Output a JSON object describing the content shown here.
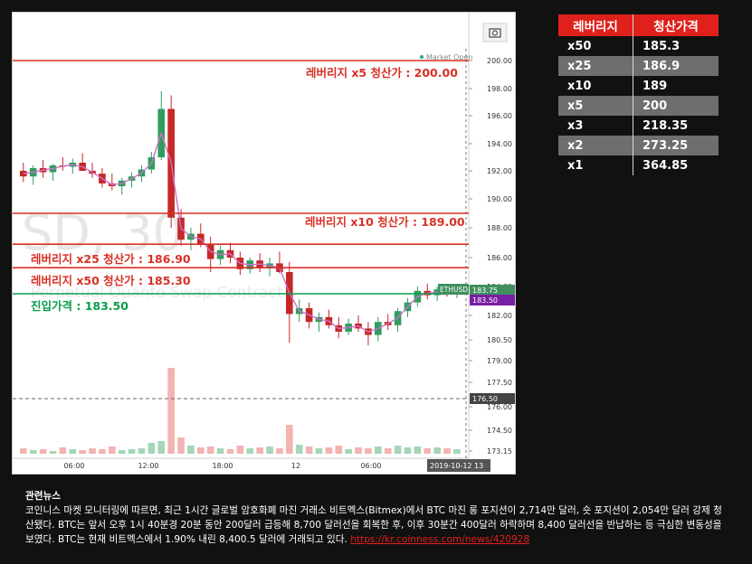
{
  "chart_data": {
    "type": "candlestick",
    "symbol_label": "ETHUSD",
    "watermark": "SD, 30",
    "watermark_sub": "Perpetual Quanto Swap Contract",
    "market_status": "Market Open",
    "y_ticks": [
      "200.00",
      "198.00",
      "196.00",
      "194.00",
      "192.00",
      "190.00",
      "188.00",
      "186.00",
      "184.00",
      "182.00",
      "180.50",
      "179.00",
      "177.50",
      "176.00",
      "174.50",
      "173.15"
    ],
    "x_ticks": [
      "06:00",
      "12:00",
      "18:00",
      "12",
      "06:00"
    ],
    "date_label": "2019-10-12 13",
    "price_tag": "183.75",
    "price_tag2": "183.50",
    "dashed_level_tag": "176.50",
    "horizontal_lines": [
      {
        "label": "레버리지 x5 청산가 : 200.00",
        "value": 200.0
      },
      {
        "label": "레버리지 x10 청산가 : 189.00",
        "value": 189.0
      },
      {
        "label": "레버리지 x25 청산가 : 186.90",
        "value": 186.9
      },
      {
        "label": "레버리지 x50 청산가 : 185.30",
        "value": 185.3
      },
      {
        "label": "진입가격 : 183.50",
        "value": 183.5
      }
    ],
    "candles_approx": [
      {
        "o": 192.0,
        "h": 192.6,
        "l": 191.2,
        "c": 191.6
      },
      {
        "o": 191.6,
        "h": 192.4,
        "l": 191.0,
        "c": 192.2
      },
      {
        "o": 192.2,
        "h": 192.8,
        "l": 191.5,
        "c": 191.9
      },
      {
        "o": 191.9,
        "h": 192.5,
        "l": 191.3,
        "c": 192.4
      },
      {
        "o": 192.4,
        "h": 193.0,
        "l": 192.0,
        "c": 192.3
      },
      {
        "o": 192.3,
        "h": 192.9,
        "l": 191.8,
        "c": 192.6
      },
      {
        "o": 192.6,
        "h": 193.3,
        "l": 192.2,
        "c": 192.0
      },
      {
        "o": 192.0,
        "h": 192.6,
        "l": 191.5,
        "c": 191.8
      },
      {
        "o": 191.8,
        "h": 192.2,
        "l": 190.8,
        "c": 191.1
      },
      {
        "o": 191.1,
        "h": 191.8,
        "l": 190.6,
        "c": 190.9
      },
      {
        "o": 190.9,
        "h": 191.5,
        "l": 190.3,
        "c": 191.3
      },
      {
        "o": 191.3,
        "h": 191.9,
        "l": 190.8,
        "c": 191.6
      },
      {
        "o": 191.6,
        "h": 192.4,
        "l": 191.2,
        "c": 192.1
      },
      {
        "o": 192.1,
        "h": 193.4,
        "l": 191.8,
        "c": 193.0
      },
      {
        "o": 193.0,
        "h": 197.8,
        "l": 192.8,
        "c": 196.5
      },
      {
        "o": 196.5,
        "h": 197.5,
        "l": 188.0,
        "c": 188.7
      },
      {
        "o": 188.7,
        "h": 189.3,
        "l": 186.8,
        "c": 187.2
      },
      {
        "o": 187.2,
        "h": 188.0,
        "l": 186.5,
        "c": 187.6
      },
      {
        "o": 187.6,
        "h": 188.3,
        "l": 186.7,
        "c": 186.9
      },
      {
        "o": 186.9,
        "h": 187.4,
        "l": 185.0,
        "c": 185.9
      },
      {
        "o": 185.9,
        "h": 186.8,
        "l": 185.5,
        "c": 186.5
      },
      {
        "o": 186.5,
        "h": 187.0,
        "l": 185.6,
        "c": 186.0
      },
      {
        "o": 186.0,
        "h": 186.4,
        "l": 184.8,
        "c": 185.2
      },
      {
        "o": 185.2,
        "h": 186.0,
        "l": 184.9,
        "c": 185.8
      },
      {
        "o": 185.8,
        "h": 186.3,
        "l": 185.0,
        "c": 185.3
      },
      {
        "o": 185.3,
        "h": 186.0,
        "l": 184.7,
        "c": 185.6
      },
      {
        "o": 185.6,
        "h": 186.4,
        "l": 184.9,
        "c": 185.0
      },
      {
        "o": 185.0,
        "h": 185.7,
        "l": 180.3,
        "c": 182.1
      },
      {
        "o": 182.1,
        "h": 183.1,
        "l": 181.6,
        "c": 182.5
      },
      {
        "o": 182.5,
        "h": 182.9,
        "l": 181.2,
        "c": 181.6
      },
      {
        "o": 181.6,
        "h": 182.2,
        "l": 181.0,
        "c": 181.9
      },
      {
        "o": 181.9,
        "h": 182.4,
        "l": 181.2,
        "c": 181.4
      },
      {
        "o": 181.4,
        "h": 181.9,
        "l": 180.6,
        "c": 181.0
      },
      {
        "o": 181.0,
        "h": 181.8,
        "l": 180.8,
        "c": 181.5
      },
      {
        "o": 181.5,
        "h": 182.0,
        "l": 181.0,
        "c": 181.2
      },
      {
        "o": 181.2,
        "h": 181.6,
        "l": 180.1,
        "c": 180.8
      },
      {
        "o": 180.8,
        "h": 181.9,
        "l": 180.4,
        "c": 181.6
      },
      {
        "o": 181.6,
        "h": 182.1,
        "l": 181.1,
        "c": 181.4
      },
      {
        "o": 181.4,
        "h": 182.5,
        "l": 181.0,
        "c": 182.3
      },
      {
        "o": 182.3,
        "h": 183.2,
        "l": 181.9,
        "c": 182.9
      },
      {
        "o": 182.9,
        "h": 184.0,
        "l": 182.6,
        "c": 183.7
      },
      {
        "o": 183.7,
        "h": 184.2,
        "l": 183.1,
        "c": 183.4
      },
      {
        "o": 183.4,
        "h": 184.0,
        "l": 183.0,
        "c": 183.8
      },
      {
        "o": 183.8,
        "h": 184.1,
        "l": 183.3,
        "c": 183.5
      },
      {
        "o": 183.5,
        "h": 184.0,
        "l": 183.2,
        "c": 183.75
      }
    ]
  },
  "table": {
    "headers": [
      "레버리지",
      "청산가격"
    ],
    "rows": [
      [
        "x50",
        "185.3"
      ],
      [
        "x25",
        "186.9"
      ],
      [
        "x10",
        "189"
      ],
      [
        "x5",
        "200"
      ],
      [
        "x3",
        "218.35"
      ],
      [
        "x2",
        "273.25"
      ],
      [
        "x1",
        "364.85"
      ]
    ]
  },
  "news": {
    "title": "관련뉴스",
    "body": "코인니스 마켓 모니터링에 따르면, 최근 1시간 글로벌 암호화폐 마진 거래소 비트멕스(Bitmex)에서 BTC 마진 롱 포지션이 2,714만 달러, 숏 포지션이 2,054만 달러 강제 청산됐다. BTC는 앞서 오후 1시 40분경 20분 동안 200달러 급등해 8,700 달러선을 회복한 후, 이후 30분간 400달러 하락하며 8,400 달러선을 반납하는 등 극심한 변동성을 보였다. BTC는 현재 비트멕스에서 1.90% 내린 8,400.5 달러에 거래되고 있다.",
    "link": "https://kr.coinness.com/news/420928"
  },
  "colors": {
    "up": "#26a69a",
    "down": "#c62828",
    "red_line": "#d93025",
    "entry_line": "#0a9d4a",
    "header_red": "#e0201b",
    "price_tag": "#3f8f5f",
    "price_tag2": "#7b1fa2"
  }
}
